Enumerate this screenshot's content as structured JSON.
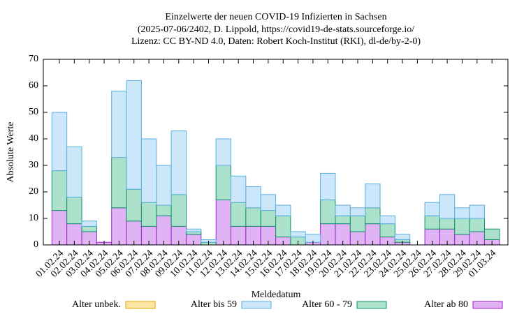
{
  "chart_data": {
    "type": "bar",
    "stacked": true,
    "title": [
      "Einzelwerte der neuen COVID-19 Infizierten in Sachsen",
      "(2025-07-06/2402, D. Lippold, https://covid19-de-stats.sourceforge.io/",
      "Lizenz: CC BY-ND 4.0, Daten: Robert Koch-Institut (RKI), dl-de/by-2-0)"
    ],
    "xlabel": "Meldedatum",
    "ylabel": "Absolute Werte",
    "categories": [
      "01.02.24",
      "02.02.24",
      "03.02.24",
      "04.02.24",
      "05.02.24",
      "06.02.24",
      "07.02.24",
      "08.02.24",
      "09.02.24",
      "10.02.24",
      "11.02.24",
      "12.02.24",
      "13.02.24",
      "14.02.24",
      "15.02.24",
      "16.02.24",
      "17.02.24",
      "18.02.24",
      "19.02.24",
      "20.02.24",
      "21.02.24",
      "22.02.24",
      "23.02.24",
      "24.02.24",
      "25.02.24",
      "26.02.24",
      "27.02.24",
      "28.02.24",
      "29.02.24",
      "01.03.24"
    ],
    "series": [
      {
        "name": "Alter ab 80",
        "color": "#e0b4f4",
        "edge": "#9a1fc8",
        "values": [
          13,
          8,
          5,
          1,
          14,
          9,
          7,
          11,
          7,
          4,
          0,
          17,
          7,
          7,
          7,
          3,
          0,
          1,
          8,
          8,
          5,
          8,
          3,
          1,
          0,
          6,
          6,
          4,
          5,
          2
        ]
      },
      {
        "name": "Alter 60 - 79",
        "color": "#ace2cc",
        "edge": "#10906c",
        "values": [
          15,
          10,
          2,
          0,
          19,
          12,
          9,
          4,
          12,
          1,
          1,
          13,
          9,
          7,
          6,
          8,
          3,
          0,
          9,
          3,
          6,
          6,
          5,
          1,
          0,
          5,
          4,
          6,
          5,
          4
        ]
      },
      {
        "name": "Alter bis 59",
        "color": "#cbe7f9",
        "edge": "#5aafe0",
        "values": [
          22,
          19,
          2,
          0,
          25,
          41,
          24,
          15,
          24,
          1,
          1,
          10,
          10,
          8,
          6,
          4,
          2,
          3,
          10,
          4,
          3,
          9,
          3,
          2,
          0,
          5,
          9,
          4,
          5,
          0
        ]
      },
      {
        "name": "Alter unbek.",
        "color": "#fde3a4",
        "edge": "#e0a400",
        "values": [
          0,
          0,
          0,
          0,
          0,
          0,
          0,
          0,
          0,
          0,
          0,
          0,
          0,
          0,
          0,
          0,
          0,
          0,
          0,
          0,
          0,
          0,
          0,
          0,
          0,
          0,
          0,
          0,
          0,
          0
        ]
      }
    ],
    "ylim": [
      0,
      70
    ],
    "yticks": [
      0,
      10,
      20,
      30,
      40,
      50,
      60,
      70
    ],
    "grid": false,
    "legend": "bottom"
  }
}
